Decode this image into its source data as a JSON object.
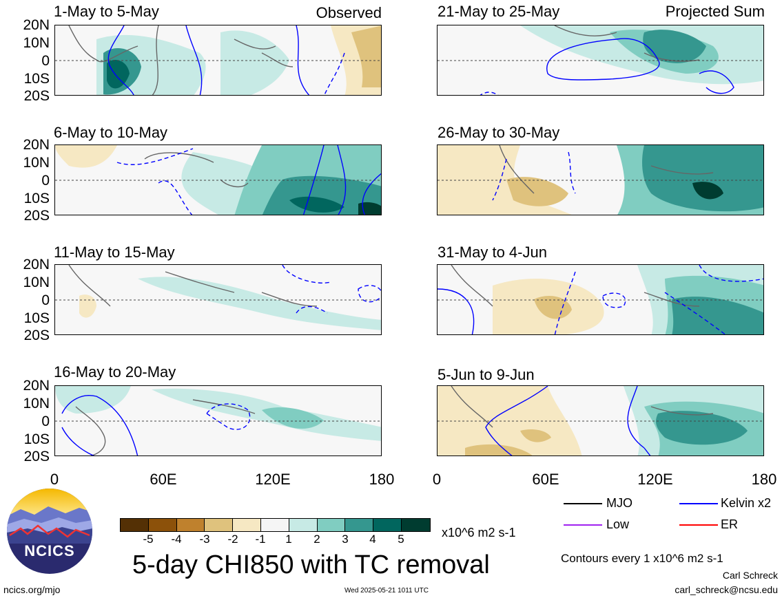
{
  "left_header_tag": "Observed",
  "right_header_tag": "Projected Sum",
  "lat_labels": [
    "20N",
    "10N",
    "0",
    "10S",
    "20S"
  ],
  "lon_labels": [
    "0",
    "60E",
    "120E",
    "180"
  ],
  "panels_left": [
    {
      "title": "1-May to 5-May"
    },
    {
      "title": "6-May to 10-May"
    },
    {
      "title": "11-May to 15-May"
    },
    {
      "title": "16-May to 20-May"
    }
  ],
  "panels_right": [
    {
      "title": "21-May to 25-May"
    },
    {
      "title": "26-May to 30-May"
    },
    {
      "title": "31-May to 4-Jun"
    },
    {
      "title": "5-Jun to 9-Jun"
    }
  ],
  "colorbar": {
    "ticks": [
      "-5",
      "-4",
      "-3",
      "-2",
      "-1",
      "1",
      "2",
      "3",
      "4",
      "5"
    ],
    "colors": [
      "#543005",
      "#8c510a",
      "#bf812d",
      "#dfc27d",
      "#f6e8c3",
      "#f5f5f5",
      "#c7eae5",
      "#80cdc1",
      "#35978f",
      "#01665e",
      "#003c30"
    ],
    "units": "x10^6 m2 s-1"
  },
  "main_title": "5-day CHI850 with TC removal",
  "legend": {
    "items": [
      {
        "label": "MJO",
        "color": "#000000"
      },
      {
        "label": "Kelvin x2",
        "color": "#0000ff"
      },
      {
        "label": "Low",
        "color": "#a020f0"
      },
      {
        "label": "ER",
        "color": "#ff0000"
      }
    ],
    "contour_note": "Contours every 1 x10^6 m2 s-1"
  },
  "logo_text": "NCICS",
  "footer": {
    "url": "ncics.org/mjo",
    "timestamp": "Wed 2025-05-21 1011 UTC",
    "author": "Carl Schreck",
    "email": "carl_schreck@ncsu.edu"
  }
}
